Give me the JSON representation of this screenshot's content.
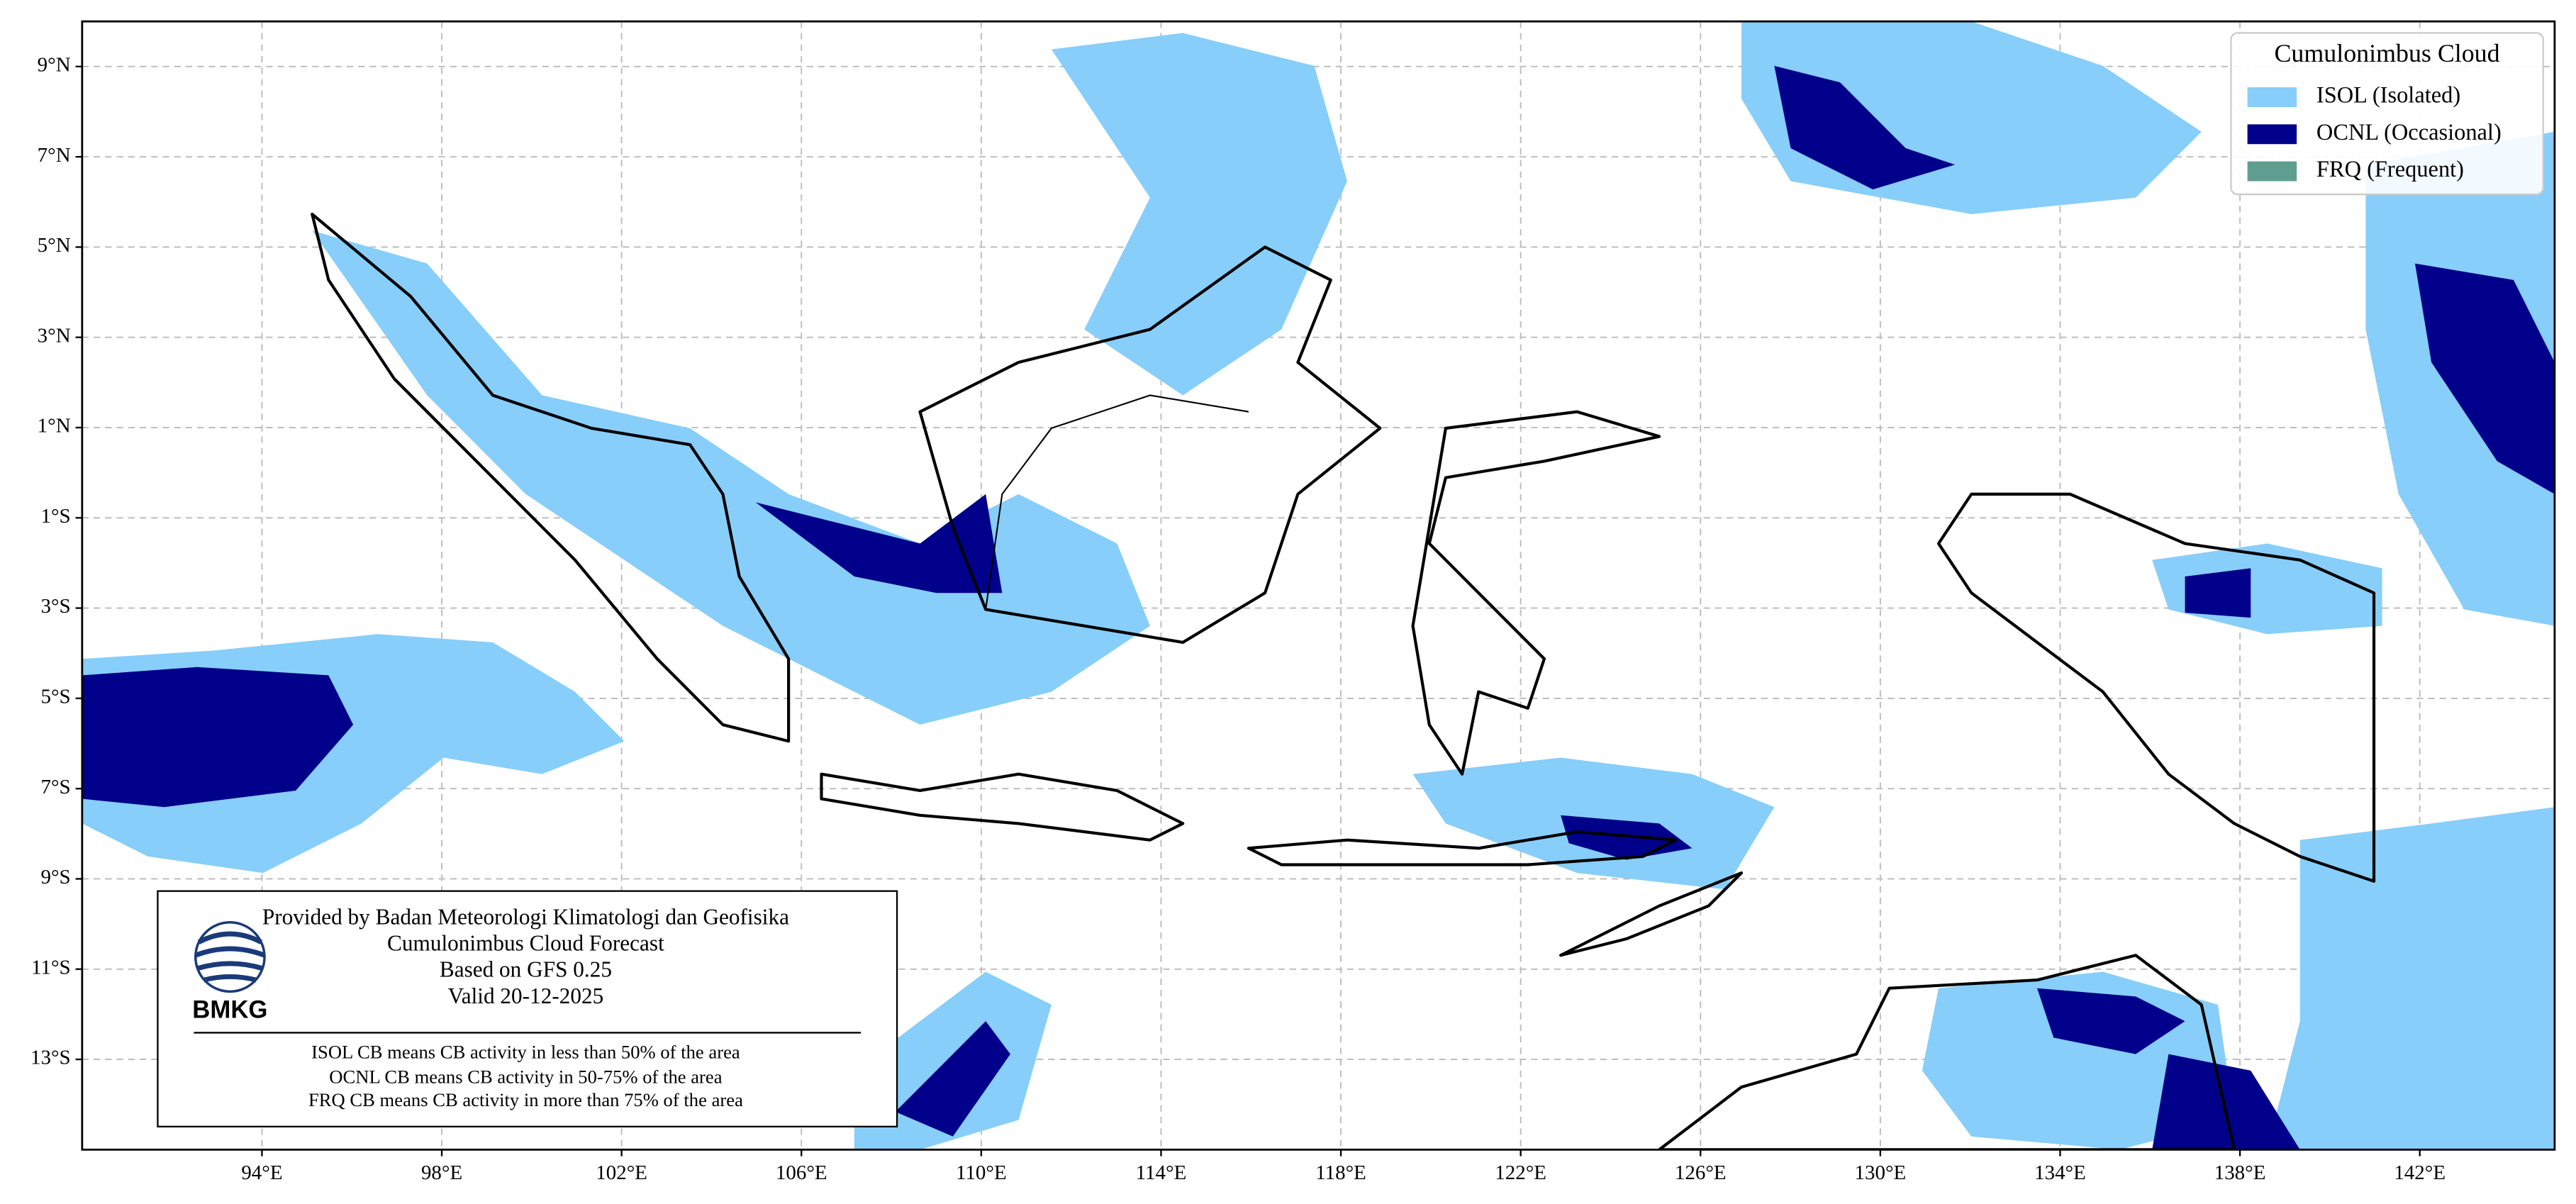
{
  "map": {
    "xlim": [
      90,
      145
    ],
    "ylim": [
      -15,
      10
    ],
    "xticks": [
      {
        "value": 94,
        "label": "94°E"
      },
      {
        "value": 98,
        "label": "98°E"
      },
      {
        "value": 102,
        "label": "102°E"
      },
      {
        "value": 106,
        "label": "106°E"
      },
      {
        "value": 110,
        "label": "110°E"
      },
      {
        "value": 114,
        "label": "114°E"
      },
      {
        "value": 118,
        "label": "118°E"
      },
      {
        "value": 122,
        "label": "122°E"
      },
      {
        "value": 126,
        "label": "126°E"
      },
      {
        "value": 130,
        "label": "130°E"
      },
      {
        "value": 134,
        "label": "134°E"
      },
      {
        "value": 138,
        "label": "138°E"
      },
      {
        "value": 142,
        "label": "142°E"
      }
    ],
    "yticks": [
      {
        "value": 9,
        "label": "9°N"
      },
      {
        "value": 7,
        "label": "7°N"
      },
      {
        "value": 5,
        "label": "5°N"
      },
      {
        "value": 3,
        "label": "3°N"
      },
      {
        "value": 1,
        "label": "1°N"
      },
      {
        "value": -1,
        "label": "1°S"
      },
      {
        "value": -3,
        "label": "3°S"
      },
      {
        "value": -5,
        "label": "5°S"
      },
      {
        "value": -7,
        "label": "7°S"
      },
      {
        "value": -9,
        "label": "9°S"
      },
      {
        "value": -11,
        "label": "11°S"
      },
      {
        "value": -13,
        "label": "13°S"
      }
    ],
    "grid": true
  },
  "legend": {
    "title": "Cumulonimbus Cloud",
    "items": [
      {
        "name": "ISOL (Isolated)",
        "color": "#87cefa"
      },
      {
        "name": "OCNL (Occasional)",
        "color": "#00008b"
      },
      {
        "name": "FRQ (Frequent)",
        "color": "#5f9e8f"
      }
    ]
  },
  "info": {
    "logo": "BMKG",
    "lines": [
      "Provided by Badan Meteorologi Klimatologi dan Geofisika",
      "Cumulonimbus Cloud Forecast",
      "Based on GFS 0.25",
      "Valid 20-12-2025"
    ],
    "notes": [
      "ISOL CB means CB activity in less than 50% of the area",
      "OCNL CB means CB activity in 50-75% of the area",
      "FRQ CB means CB activity in more than 75% of the area"
    ]
  }
}
